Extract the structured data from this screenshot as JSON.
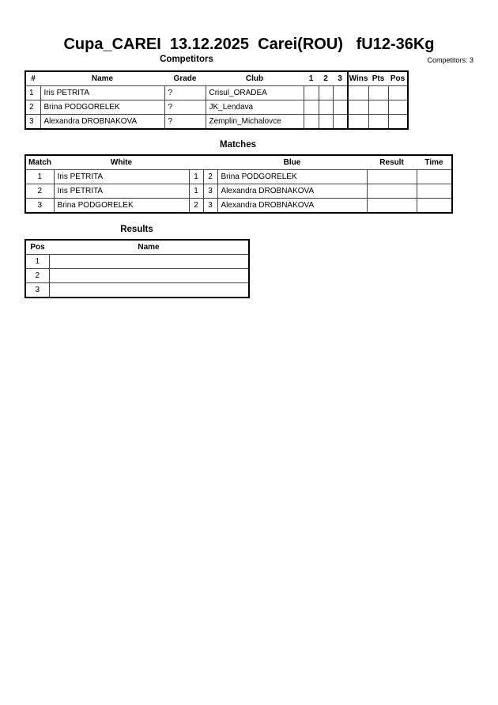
{
  "title": "Cupa_CAREI  13.12.2025  Carei(ROU)   fU12-36Kg",
  "competitors": {
    "label": "Competitors",
    "count_text": "Competitors: 3",
    "headers": [
      "#",
      "Name",
      "Grade",
      "Club",
      "1",
      "2",
      "3",
      "Wins",
      "Pts",
      "Pos"
    ],
    "rows": [
      {
        "num": "1",
        "name": "Iris PETRITA",
        "grade": "?",
        "club": "Crisul_ORADEA"
      },
      {
        "num": "2",
        "name": "Brina PODGORELEK",
        "grade": "?",
        "club": "JK_Lendava"
      },
      {
        "num": "3",
        "name": "Alexandra DROBNAKOVA",
        "grade": "?",
        "club": "Zemplin_Michalovce"
      }
    ]
  },
  "matches": {
    "label": "Matches",
    "headers": [
      "Match",
      "White",
      "Blue",
      "Result",
      "Time"
    ],
    "rows": [
      {
        "match": "1",
        "white": "Iris PETRITA",
        "wn": "1",
        "bn": "2",
        "blue": "Brina PODGORELEK"
      },
      {
        "match": "2",
        "white": "Iris PETRITA",
        "wn": "1",
        "bn": "3",
        "blue": "Alexandra DROBNAKOVA"
      },
      {
        "match": "3",
        "white": "Brina PODGORELEK",
        "wn": "2",
        "bn": "3",
        "blue": "Alexandra DROBNAKOVA"
      }
    ]
  },
  "results": {
    "label": "Results",
    "headers": [
      "Pos",
      "Name"
    ],
    "rows": [
      {
        "pos": "1"
      },
      {
        "pos": "2"
      },
      {
        "pos": "3"
      }
    ]
  }
}
